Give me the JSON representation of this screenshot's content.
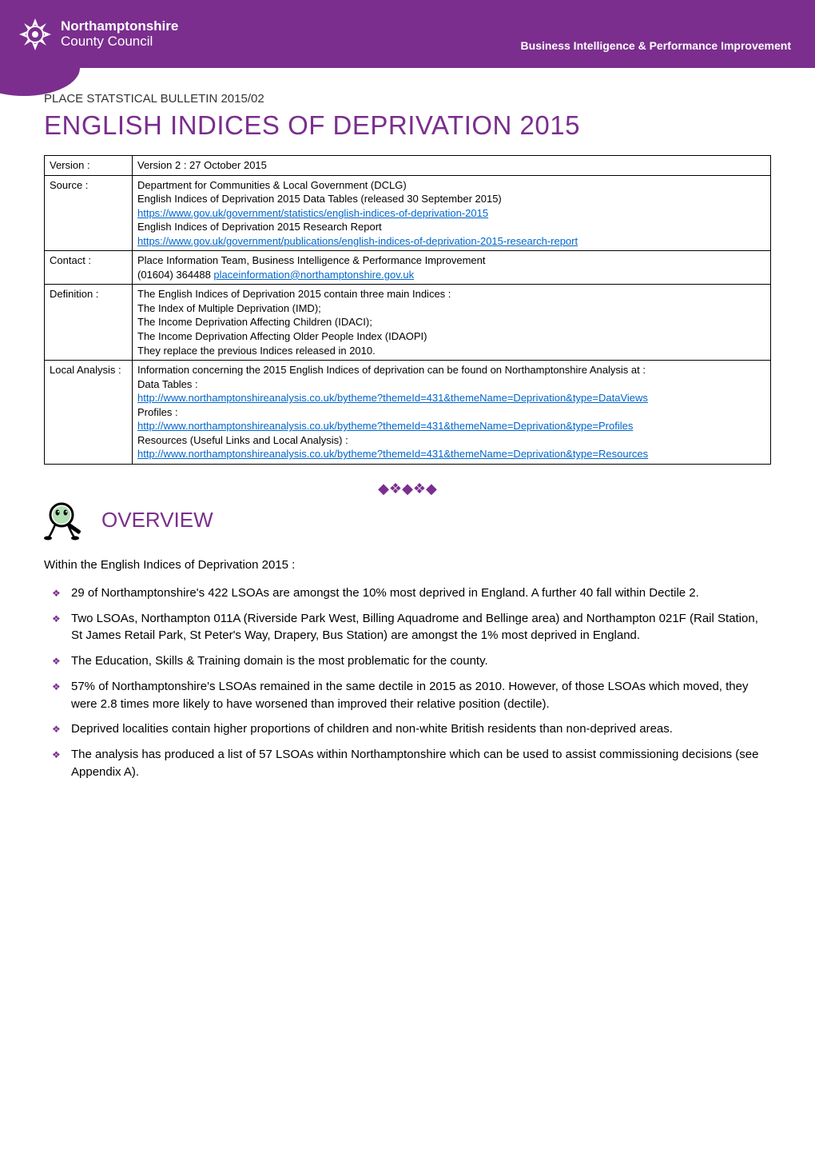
{
  "header": {
    "org_line1": "Northamptonshire",
    "org_line2": "County Council",
    "right_text": "Business Intelligence & Performance Improvement",
    "bg_color": "#7b2e8e",
    "text_color": "#ffffff"
  },
  "bulletin_line": "PLACE STATSTICAL BULLETIN  2015/02",
  "main_title": "ENGLISH INDICES OF DEPRIVATION 2015",
  "colors": {
    "accent": "#7b2e8e",
    "link": "#0066cc",
    "body_text": "#000000",
    "border": "#000000"
  },
  "meta_table": {
    "rows": [
      {
        "label": "Version :",
        "lines": [
          {
            "text": "Version 2 :  27 October 2015",
            "link": false
          }
        ]
      },
      {
        "label": "Source :",
        "lines": [
          {
            "text": "Department for Communities & Local Government (DCLG)",
            "link": false
          },
          {
            "text": "English Indices of Deprivation 2015 Data Tables (released 30 September 2015)",
            "link": false
          },
          {
            "text": "https://www.gov.uk/government/statistics/english-indices-of-deprivation-2015",
            "link": true
          },
          {
            "text": "English Indices of Deprivation 2015 Research Report",
            "link": false
          },
          {
            "text": "https://www.gov.uk/government/publications/english-indices-of-deprivation-2015-research-report",
            "link": true
          }
        ]
      },
      {
        "label": "Contact :",
        "lines": [
          {
            "text": "Place Information Team, Business Intelligence & Performance Improvement",
            "link": false
          },
          {
            "text_prefix": "(01604) 364488    ",
            "text": "placeinformation@northamptonshire.gov.uk",
            "link": true
          }
        ]
      },
      {
        "label": "Definition :",
        "lines": [
          {
            "text": "The English Indices of Deprivation 2015 contain three main Indices :",
            "link": false
          },
          {
            "text": "The Index of Multiple Deprivation (IMD);",
            "link": false
          },
          {
            "text": "The Income Deprivation Affecting Children (IDACI);",
            "link": false
          },
          {
            "text": "The Income Deprivation Affecting Older People Index (IDAOPI)",
            "link": false
          },
          {
            "text": "They replace the previous Indices released in 2010.",
            "link": false
          }
        ]
      },
      {
        "label": "Local Analysis :",
        "lines": [
          {
            "text": "Information concerning the 2015 English Indices of deprivation can be found on Northamptonshire Analysis at :",
            "link": false
          },
          {
            "text": "Data Tables :",
            "link": false
          },
          {
            "text": "http://www.northamptonshireanalysis.co.uk/bytheme?themeId=431&themeName=Deprivation&type=DataViews",
            "link": true
          },
          {
            "text": "Profiles :",
            "link": false
          },
          {
            "text": "http://www.northamptonshireanalysis.co.uk/bytheme?themeId=431&themeName=Deprivation&type=Profiles",
            "link": true
          },
          {
            "text": "Resources (Useful Links and Local Analysis) :",
            "link": false
          },
          {
            "text": "http://www.northamptonshireanalysis.co.uk/bytheme?themeId=431&themeName=Deprivation&type=Resources",
            "link": true
          }
        ]
      }
    ]
  },
  "divider": "◆❖◆❖◆",
  "overview": {
    "title": "OVERVIEW",
    "intro": "Within the English Indices of Deprivation 2015 :",
    "bullets": [
      "29 of Northamptonshire's 422 LSOAs are amongst the 10% most deprived in England.  A further 40 fall within Dectile 2.",
      "Two LSOAs, Northampton 011A (Riverside Park West, Billing Aquadrome and Bellinge area) and Northampton 021F (Rail Station, St James Retail Park, St Peter's Way, Drapery, Bus Station) are amongst the 1% most deprived in England.",
      "The Education, Skills & Training domain is the most problematic for the county.",
      "57% of Northamptonshire's LSOAs remained in the same dectile in 2015 as 2010.  However, of those LSOAs which moved, they were 2.8 times more likely to have worsened than improved their relative position (dectile).",
      "Deprived localities contain higher proportions of children and non-white British residents than non-deprived areas.",
      "The analysis has produced a list of 57 LSOAs within Northamptonshire which can be used to assist commissioning decisions (see Appendix A)."
    ]
  }
}
